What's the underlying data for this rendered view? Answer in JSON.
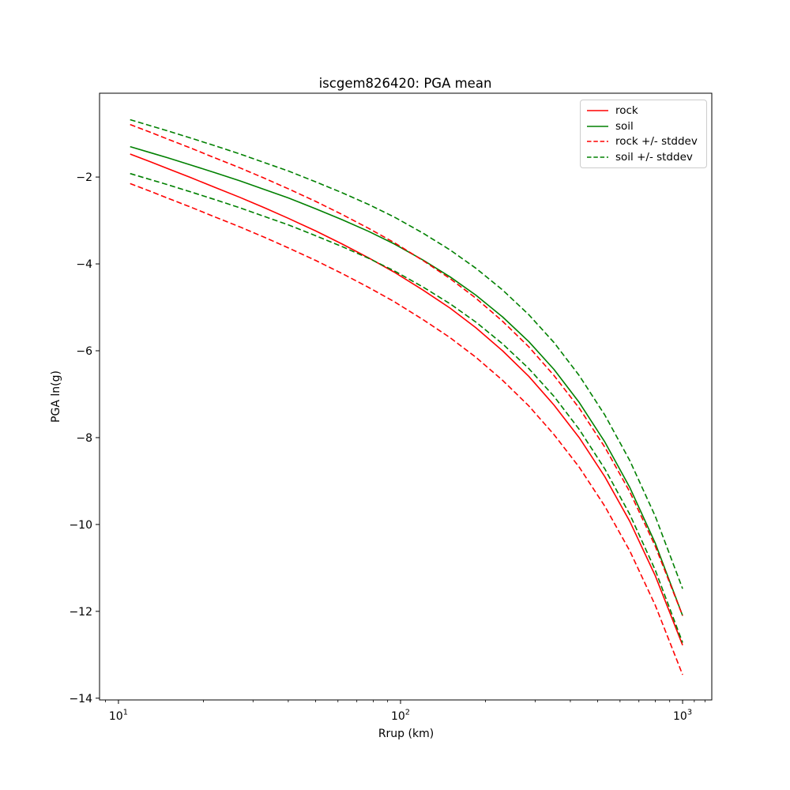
{
  "figure": {
    "background_color": "#ffffff",
    "frame_color": "#000000"
  },
  "chart_data": {
    "type": "line",
    "title": "iscgem826420: PGA mean",
    "xlabel": "Rrup (km)",
    "ylabel": "PGA ln(g)",
    "x_scale": "log",
    "y_scale": "linear",
    "xlim": [
      8.57,
      1269
    ],
    "ylim": [
      -14.04,
      -0.07
    ],
    "grid": false,
    "legend_position": "upper right",
    "x_ticks": [
      {
        "value": 10,
        "base": "10",
        "exp": "1"
      },
      {
        "value": 100,
        "base": "10",
        "exp": "2"
      },
      {
        "value": 1000,
        "base": "10",
        "exp": "3"
      }
    ],
    "x_minor_ticks": [
      9,
      20,
      30,
      40,
      50,
      60,
      70,
      80,
      90,
      200,
      300,
      400,
      500,
      600,
      700,
      800,
      900,
      1100,
      1200
    ],
    "y_ticks": [
      {
        "value": -2,
        "label": "−2"
      },
      {
        "value": -4,
        "label": "−4"
      },
      {
        "value": -6,
        "label": "−6"
      },
      {
        "value": -8,
        "label": "−8"
      },
      {
        "value": -10,
        "label": "−10"
      },
      {
        "value": -12,
        "label": "−12"
      },
      {
        "value": -14,
        "label": "−14"
      }
    ],
    "x": [
      11,
      13,
      15,
      18,
      22,
      27,
      33,
      40,
      50,
      62,
      77,
      95,
      120,
      150,
      185,
      230,
      285,
      350,
      430,
      530,
      650,
      800,
      1000
    ],
    "series": [
      {
        "name": "rock",
        "color": "#ff0000",
        "style": "solid",
        "values": [
          -1.47,
          -1.65,
          -1.81,
          -2.01,
          -2.24,
          -2.47,
          -2.71,
          -2.95,
          -3.24,
          -3.54,
          -3.86,
          -4.19,
          -4.6,
          -5.02,
          -5.47,
          -6.0,
          -6.59,
          -7.25,
          -8.0,
          -8.9,
          -9.93,
          -11.18,
          -12.78
        ]
      },
      {
        "name": "soil",
        "color": "#008000",
        "style": "solid",
        "values": [
          -1.3,
          -1.44,
          -1.56,
          -1.72,
          -1.9,
          -2.09,
          -2.29,
          -2.48,
          -2.73,
          -2.98,
          -3.25,
          -3.54,
          -3.91,
          -4.3,
          -4.72,
          -5.22,
          -5.79,
          -6.43,
          -7.19,
          -8.1,
          -9.15,
          -10.43,
          -12.1
        ]
      },
      {
        "name": "rock +/- stddev",
        "color": "#ff0000",
        "style": "dashed",
        "values_upper": [
          -0.79,
          -0.97,
          -1.13,
          -1.33,
          -1.56,
          -1.79,
          -2.03,
          -2.27,
          -2.56,
          -2.86,
          -3.18,
          -3.51,
          -3.92,
          -4.34,
          -4.79,
          -5.32,
          -5.91,
          -6.57,
          -7.32,
          -8.22,
          -9.25,
          -10.5,
          -12.1
        ],
        "values_lower": [
          -2.15,
          -2.33,
          -2.49,
          -2.69,
          -2.92,
          -3.15,
          -3.39,
          -3.63,
          -3.92,
          -4.22,
          -4.54,
          -4.87,
          -5.28,
          -5.7,
          -6.15,
          -6.68,
          -7.27,
          -7.93,
          -8.68,
          -9.58,
          -10.61,
          -11.86,
          -13.46
        ]
      },
      {
        "name": "soil +/- stddev",
        "color": "#008000",
        "style": "dashed",
        "values_upper": [
          -0.68,
          -0.82,
          -0.94,
          -1.1,
          -1.28,
          -1.47,
          -1.67,
          -1.86,
          -2.11,
          -2.36,
          -2.63,
          -2.92,
          -3.29,
          -3.68,
          -4.1,
          -4.6,
          -5.17,
          -5.81,
          -6.57,
          -7.48,
          -8.53,
          -9.81,
          -11.48
        ],
        "values_lower": [
          -1.92,
          -2.06,
          -2.18,
          -2.34,
          -2.52,
          -2.71,
          -2.91,
          -3.1,
          -3.35,
          -3.6,
          -3.87,
          -4.16,
          -4.53,
          -4.92,
          -5.34,
          -5.84,
          -6.41,
          -7.05,
          -7.81,
          -8.72,
          -9.77,
          -11.05,
          -12.72
        ]
      }
    ]
  }
}
